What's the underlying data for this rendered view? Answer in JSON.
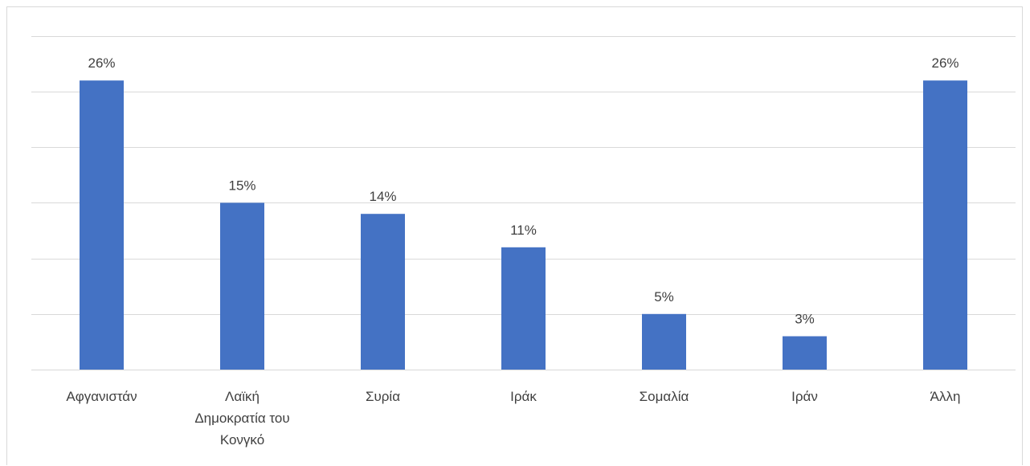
{
  "chart_data": {
    "type": "bar",
    "categories": [
      "Αφγανιστάν",
      "Λαϊκή Δημοκρατία του Κονγκό",
      "Συρία",
      "Ιράκ",
      "Σομαλία",
      "Ιράν",
      "Άλλη"
    ],
    "category_lines": [
      [
        "Αφγανιστάν"
      ],
      [
        "Λαϊκή",
        "Δημοκρατία του",
        "Κονγκό"
      ],
      [
        "Συρία"
      ],
      [
        "Ιράκ"
      ],
      [
        "Σομαλία"
      ],
      [
        "Ιράν"
      ],
      [
        "Άλλη"
      ]
    ],
    "values": [
      26,
      15,
      14,
      11,
      5,
      3,
      26
    ],
    "data_labels": [
      "26%",
      "15%",
      "14%",
      "11%",
      "5%",
      "3%",
      "26%"
    ],
    "unit": "%",
    "ylim": [
      0,
      30
    ],
    "grid": true,
    "bar_color": "#4472c4"
  }
}
